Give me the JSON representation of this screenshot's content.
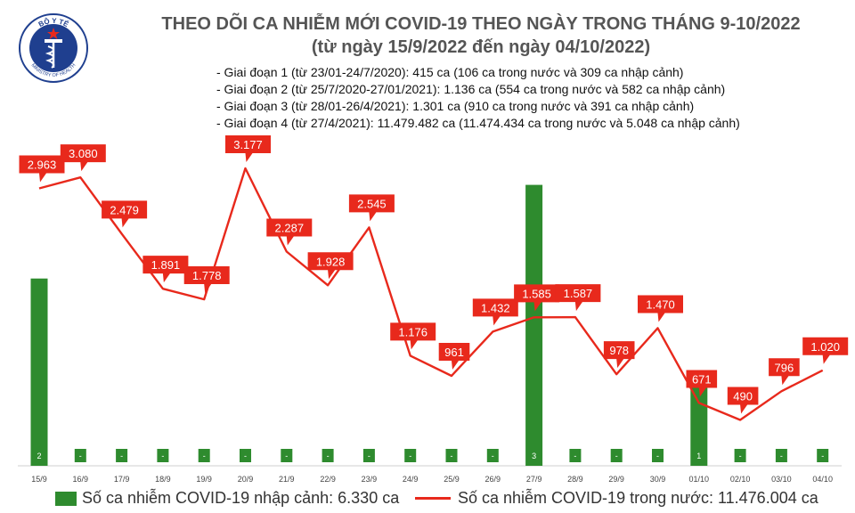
{
  "title_line1": "THEO DÕI CA NHIỄM MỚI COVID-19 THEO NGÀY TRONG THÁNG 9-10/2022",
  "title_line2": "(từ ngày 15/9/2022 đến ngày 04/10/2022)",
  "logo": {
    "top_text": "BỘ Y TẾ",
    "bottom_text": "MINISTRY OF HEALTH"
  },
  "notes": [
    "- Giai đoạn 1 (từ 23/01-24/7/2020): 415 ca (106 ca trong nước và 309 ca nhập cảnh)",
    "- Giai đoạn 2 (từ 25/7/2020-27/01/2021): 1.136 ca (554 ca trong nước và 582 ca nhập cảnh)",
    "- Giai đoạn 3 (từ 28/01-26/4/2021): 1.301 ca (910 ca trong nước và 391 ca nhập cảnh)",
    "- Giai đoạn 4 (từ 27/4/2021): 11.479.482 ca (11.474.434 ca trong nước và 5.048 ca nhập cảnh)"
  ],
  "colors": {
    "bar": "#2e8b2e",
    "line": "#e8291c",
    "label_bg": "#e8291c",
    "label_text": "#ffffff"
  },
  "legend": {
    "bar_label": "Số ca nhiễm COVID-19 nhập cảnh: 6.330 ca",
    "line_label": "Số ca nhiễm COVID-19 trong nước: 11.476.004 ca"
  },
  "chart_data": {
    "type": "bar",
    "categories": [
      "15/9",
      "16/9",
      "17/9",
      "18/9",
      "19/9",
      "20/9",
      "21/9",
      "22/9",
      "23/9",
      "24/9",
      "25/9",
      "26/9",
      "27/9",
      "28/9",
      "29/9",
      "30/9",
      "01/10",
      "02/10",
      "03/10",
      "04/10"
    ],
    "series": [
      {
        "name": "Số ca nhiễm COVID-19 nhập cảnh: 6.330 ca",
        "type": "bar",
        "axis": "right",
        "values": [
          2,
          0,
          0,
          0,
          0,
          0,
          0,
          0,
          0,
          0,
          0,
          0,
          3,
          0,
          0,
          0,
          1,
          0,
          0,
          0
        ],
        "labels": [
          "2",
          "-",
          "-",
          "-",
          "-",
          "-",
          "-",
          "-",
          "-",
          "-",
          "-",
          "-",
          "3",
          "-",
          "-",
          "-",
          "1",
          "-",
          "-",
          "-"
        ]
      },
      {
        "name": "Số ca nhiễm COVID-19 trong nước: 11.476.004 ca",
        "type": "line",
        "axis": "left",
        "values": [
          2963,
          3080,
          2479,
          1891,
          1778,
          3177,
          2287,
          1928,
          2545,
          1176,
          961,
          1432,
          1585,
          1587,
          978,
          1470,
          671,
          490,
          796,
          1020
        ],
        "labels": [
          "2.963",
          "3.080",
          "2.479",
          "1.891",
          "1.778",
          "3.177",
          "2.287",
          "1.928",
          "2.545",
          "1.176",
          "961",
          "1.432",
          "1.585",
          "1.587",
          "978",
          "1.470",
          "671",
          "490",
          "796",
          "1.020"
        ]
      }
    ],
    "ylim_left": [
      0,
      3500
    ],
    "ylim_right": [
      0,
      3.5
    ],
    "grid": false,
    "legend_position": "bottom"
  }
}
